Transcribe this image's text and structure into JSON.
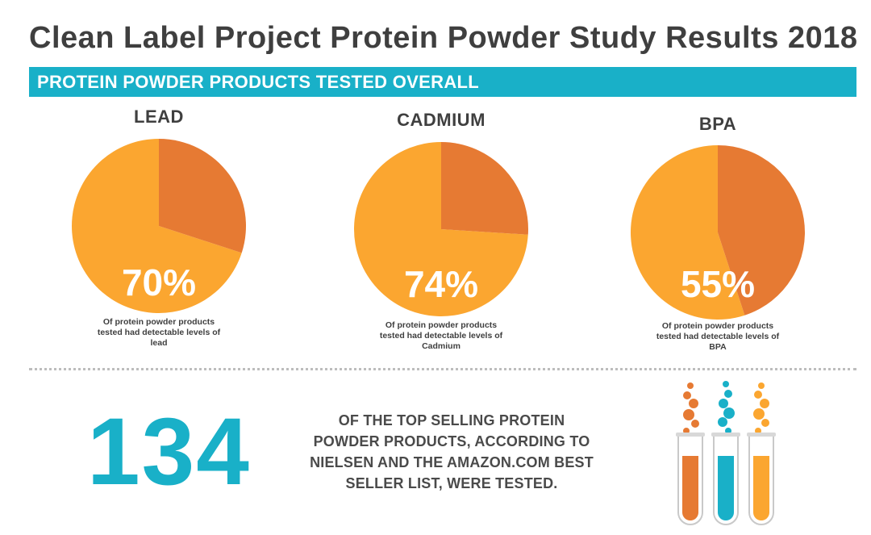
{
  "title": "Clean Label Project Protein Powder Study Results 2018",
  "banner": "PROTEIN POWDER PRODUCTS TESTED OVERALL",
  "colors": {
    "detected": "#fba630",
    "not_detected": "#e67a33",
    "teal": "#19b0c8",
    "dark_text": "#3f3f3f"
  },
  "chart_data": [
    {
      "type": "pie",
      "title": "LEAD",
      "slices": [
        {
          "label": "detectable levels",
          "value": 70
        },
        {
          "label": "",
          "value": 30
        }
      ],
      "value_label": "70%",
      "caption": [
        "Of protein powder products",
        "tested had detectable levels of",
        "lead"
      ]
    },
    {
      "type": "pie",
      "title": "CADMIUM",
      "slices": [
        {
          "label": "detectable levels",
          "value": 74
        },
        {
          "label": "",
          "value": 26
        }
      ],
      "value_label": "74%",
      "caption": [
        "Of protein powder products",
        "tested had detectable levels of",
        "Cadmium"
      ]
    },
    {
      "type": "pie",
      "title": "BPA",
      "slices": [
        {
          "label": "detectable levels",
          "value": 55
        },
        {
          "label": "",
          "value": 45
        }
      ],
      "value_label": "55%",
      "caption": [
        "Of protein powder products",
        "tested had detectable levels of",
        "BPA"
      ]
    }
  ],
  "tested_count": "134",
  "tested_description": [
    "OF THE TOP SELLING PROTEIN",
    "POWDER PRODUCTS, ACCORDING TO",
    "NIELSEN AND THE AMAZON.COM BEST",
    "SELLER LIST, WERE TESTED."
  ],
  "tubes": [
    {
      "icon": "test-tube-icon",
      "color": "#e67a33"
    },
    {
      "icon": "test-tube-icon",
      "color": "#19b0c8"
    },
    {
      "icon": "test-tube-icon",
      "color": "#fba630"
    }
  ]
}
